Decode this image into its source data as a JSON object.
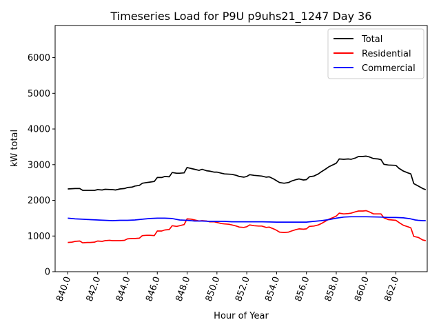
{
  "chart_data": {
    "type": "line",
    "title": "Timeseries Load for P9U p9uhs21_1247  Day 36",
    "xlabel": "Hour of Year",
    "ylabel": "kW total",
    "xlim": [
      839.15,
      864.1
    ],
    "ylim": [
      0,
      6900
    ],
    "xticks": [
      840,
      842,
      844,
      846,
      848,
      850,
      852,
      854,
      856,
      858,
      860,
      862
    ],
    "xtick_labels": [
      "840.0",
      "842.0",
      "844.0",
      "846.0",
      "848.0",
      "850.0",
      "852.0",
      "854.0",
      "856.0",
      "858.0",
      "860.0",
      "862.0"
    ],
    "yticks": [
      0,
      1000,
      2000,
      3000,
      4000,
      5000,
      6000
    ],
    "ytick_labels": [
      "0",
      "1000",
      "2000",
      "3000",
      "4000",
      "5000",
      "6000"
    ],
    "legend_position": "top-right",
    "series": [
      {
        "name": "Total",
        "color": "#000000",
        "points": [
          [
            840.0,
            2320
          ],
          [
            840.5,
            2330
          ],
          [
            840.8,
            2330
          ],
          [
            841.0,
            2280
          ],
          [
            841.5,
            2280
          ],
          [
            841.8,
            2280
          ],
          [
            842.0,
            2300
          ],
          [
            842.3,
            2290
          ],
          [
            842.5,
            2310
          ],
          [
            843.0,
            2300
          ],
          [
            843.2,
            2290
          ],
          [
            843.5,
            2320
          ],
          [
            843.8,
            2330
          ],
          [
            844.0,
            2360
          ],
          [
            844.3,
            2370
          ],
          [
            844.5,
            2400
          ],
          [
            844.8,
            2420
          ],
          [
            845.0,
            2480
          ],
          [
            845.3,
            2500
          ],
          [
            845.5,
            2510
          ],
          [
            845.8,
            2530
          ],
          [
            846.0,
            2640
          ],
          [
            846.3,
            2640
          ],
          [
            846.5,
            2670
          ],
          [
            846.8,
            2660
          ],
          [
            847.0,
            2780
          ],
          [
            847.3,
            2760
          ],
          [
            847.5,
            2760
          ],
          [
            847.8,
            2770
          ],
          [
            848.0,
            2920
          ],
          [
            848.3,
            2890
          ],
          [
            848.5,
            2870
          ],
          [
            848.8,
            2840
          ],
          [
            849.0,
            2870
          ],
          [
            849.3,
            2830
          ],
          [
            849.5,
            2820
          ],
          [
            849.8,
            2790
          ],
          [
            850.0,
            2790
          ],
          [
            850.3,
            2760
          ],
          [
            850.5,
            2740
          ],
          [
            851.0,
            2730
          ],
          [
            851.3,
            2700
          ],
          [
            851.5,
            2670
          ],
          [
            851.8,
            2650
          ],
          [
            852.0,
            2670
          ],
          [
            852.2,
            2720
          ],
          [
            852.5,
            2700
          ],
          [
            853.0,
            2680
          ],
          [
            853.3,
            2650
          ],
          [
            853.5,
            2660
          ],
          [
            853.8,
            2600
          ],
          [
            854.0,
            2550
          ],
          [
            854.2,
            2500
          ],
          [
            854.5,
            2480
          ],
          [
            854.8,
            2500
          ],
          [
            855.0,
            2540
          ],
          [
            855.3,
            2580
          ],
          [
            855.5,
            2600
          ],
          [
            855.8,
            2570
          ],
          [
            856.0,
            2580
          ],
          [
            856.2,
            2660
          ],
          [
            856.5,
            2680
          ],
          [
            856.8,
            2740
          ],
          [
            857.0,
            2800
          ],
          [
            857.3,
            2880
          ],
          [
            857.5,
            2940
          ],
          [
            857.8,
            3000
          ],
          [
            858.0,
            3040
          ],
          [
            858.2,
            3160
          ],
          [
            858.5,
            3150
          ],
          [
            858.8,
            3160
          ],
          [
            859.0,
            3150
          ],
          [
            859.3,
            3190
          ],
          [
            859.5,
            3230
          ],
          [
            859.8,
            3230
          ],
          [
            860.0,
            3240
          ],
          [
            860.2,
            3220
          ],
          [
            860.5,
            3170
          ],
          [
            860.8,
            3160
          ],
          [
            861.0,
            3140
          ],
          [
            861.2,
            3010
          ],
          [
            861.5,
            2990
          ],
          [
            862.0,
            2980
          ],
          [
            862.2,
            2900
          ],
          [
            862.5,
            2820
          ],
          [
            862.8,
            2770
          ],
          [
            863.0,
            2740
          ],
          [
            863.2,
            2470
          ],
          [
            863.5,
            2400
          ],
          [
            863.8,
            2330
          ],
          [
            864.0,
            2300
          ]
        ]
      },
      {
        "name": "Residential",
        "color": "#ff0000",
        "points": [
          [
            840.0,
            820
          ],
          [
            840.3,
            830
          ],
          [
            840.5,
            850
          ],
          [
            840.8,
            860
          ],
          [
            841.0,
            810
          ],
          [
            841.3,
            820
          ],
          [
            841.5,
            820
          ],
          [
            841.8,
            830
          ],
          [
            842.0,
            860
          ],
          [
            842.3,
            850
          ],
          [
            842.5,
            870
          ],
          [
            842.8,
            880
          ],
          [
            843.0,
            870
          ],
          [
            843.3,
            870
          ],
          [
            843.5,
            870
          ],
          [
            843.8,
            880
          ],
          [
            844.0,
            920
          ],
          [
            844.3,
            930
          ],
          [
            844.5,
            930
          ],
          [
            844.8,
            940
          ],
          [
            845.0,
            1010
          ],
          [
            845.3,
            1020
          ],
          [
            845.5,
            1020
          ],
          [
            845.8,
            1010
          ],
          [
            846.0,
            1140
          ],
          [
            846.3,
            1140
          ],
          [
            846.5,
            1170
          ],
          [
            846.8,
            1180
          ],
          [
            847.0,
            1290
          ],
          [
            847.3,
            1270
          ],
          [
            847.5,
            1290
          ],
          [
            847.8,
            1320
          ],
          [
            848.0,
            1480
          ],
          [
            848.3,
            1470
          ],
          [
            848.5,
            1450
          ],
          [
            848.8,
            1420
          ],
          [
            849.0,
            1430
          ],
          [
            849.3,
            1420
          ],
          [
            849.5,
            1400
          ],
          [
            849.8,
            1400
          ],
          [
            850.0,
            1380
          ],
          [
            850.3,
            1350
          ],
          [
            850.5,
            1340
          ],
          [
            850.8,
            1330
          ],
          [
            851.0,
            1310
          ],
          [
            851.3,
            1280
          ],
          [
            851.5,
            1250
          ],
          [
            851.8,
            1240
          ],
          [
            852.0,
            1260
          ],
          [
            852.2,
            1310
          ],
          [
            852.5,
            1290
          ],
          [
            852.8,
            1280
          ],
          [
            853.0,
            1280
          ],
          [
            853.3,
            1240
          ],
          [
            853.5,
            1250
          ],
          [
            853.8,
            1200
          ],
          [
            854.0,
            1160
          ],
          [
            854.2,
            1110
          ],
          [
            854.5,
            1100
          ],
          [
            854.8,
            1110
          ],
          [
            855.0,
            1140
          ],
          [
            855.3,
            1180
          ],
          [
            855.5,
            1200
          ],
          [
            855.8,
            1190
          ],
          [
            856.0,
            1200
          ],
          [
            856.2,
            1270
          ],
          [
            856.5,
            1280
          ],
          [
            856.8,
            1310
          ],
          [
            857.0,
            1350
          ],
          [
            857.3,
            1420
          ],
          [
            857.5,
            1470
          ],
          [
            857.8,
            1520
          ],
          [
            858.0,
            1560
          ],
          [
            858.2,
            1640
          ],
          [
            858.5,
            1620
          ],
          [
            858.8,
            1630
          ],
          [
            859.0,
            1640
          ],
          [
            859.3,
            1680
          ],
          [
            859.5,
            1700
          ],
          [
            859.8,
            1700
          ],
          [
            860.0,
            1710
          ],
          [
            860.2,
            1680
          ],
          [
            860.5,
            1620
          ],
          [
            860.8,
            1620
          ],
          [
            861.0,
            1620
          ],
          [
            861.2,
            1510
          ],
          [
            861.5,
            1460
          ],
          [
            862.0,
            1440
          ],
          [
            862.2,
            1380
          ],
          [
            862.5,
            1300
          ],
          [
            862.8,
            1260
          ],
          [
            863.0,
            1230
          ],
          [
            863.2,
            990
          ],
          [
            863.5,
            960
          ],
          [
            863.8,
            890
          ],
          [
            864.0,
            870
          ]
        ]
      },
      {
        "name": "Commercial",
        "color": "#0000ff",
        "points": [
          [
            840.0,
            1500
          ],
          [
            840.5,
            1480
          ],
          [
            841.0,
            1470
          ],
          [
            841.5,
            1460
          ],
          [
            842.0,
            1450
          ],
          [
            842.5,
            1440
          ],
          [
            843.0,
            1430
          ],
          [
            843.5,
            1440
          ],
          [
            844.0,
            1440
          ],
          [
            844.5,
            1450
          ],
          [
            845.0,
            1470
          ],
          [
            845.5,
            1490
          ],
          [
            846.0,
            1500
          ],
          [
            846.5,
            1500
          ],
          [
            847.0,
            1490
          ],
          [
            847.5,
            1450
          ],
          [
            848.0,
            1440
          ],
          [
            848.5,
            1420
          ],
          [
            849.0,
            1420
          ],
          [
            849.5,
            1410
          ],
          [
            850.0,
            1410
          ],
          [
            850.5,
            1410
          ],
          [
            851.0,
            1400
          ],
          [
            852.0,
            1400
          ],
          [
            853.0,
            1400
          ],
          [
            854.0,
            1390
          ],
          [
            855.0,
            1390
          ],
          [
            856.0,
            1390
          ],
          [
            856.5,
            1410
          ],
          [
            857.0,
            1430
          ],
          [
            857.5,
            1460
          ],
          [
            858.0,
            1500
          ],
          [
            858.5,
            1530
          ],
          [
            859.0,
            1540
          ],
          [
            860.0,
            1540
          ],
          [
            861.0,
            1530
          ],
          [
            861.5,
            1520
          ],
          [
            862.0,
            1520
          ],
          [
            862.5,
            1510
          ],
          [
            863.0,
            1480
          ],
          [
            863.3,
            1450
          ],
          [
            863.5,
            1440
          ],
          [
            863.8,
            1430
          ],
          [
            864.0,
            1430
          ]
        ]
      }
    ]
  }
}
